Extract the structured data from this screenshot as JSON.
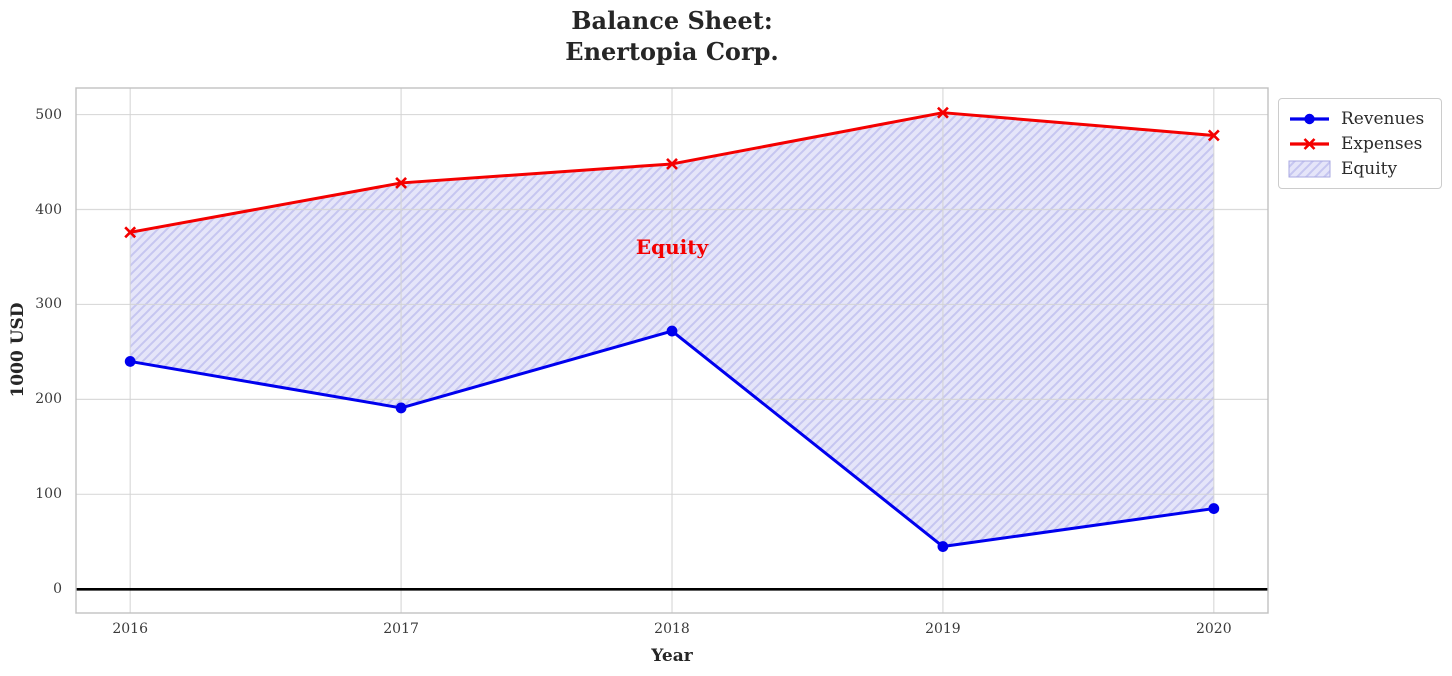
{
  "chart_data": {
    "type": "line",
    "title": "Balance Sheet:\nEnertopia Corp.",
    "title_lines": [
      "Balance Sheet:",
      "Enertopia Corp."
    ],
    "xlabel": "Year",
    "ylabel": "1000 USD",
    "x": [
      2016,
      2017,
      2018,
      2019,
      2020
    ],
    "series": [
      {
        "name": "Revenues",
        "values": [
          240,
          191,
          272,
          45,
          85
        ],
        "color": "#0000ee",
        "marker": "circle"
      },
      {
        "name": "Expenses",
        "values": [
          376,
          428,
          448,
          502,
          478
        ],
        "color": "#f40000",
        "marker": "x"
      }
    ],
    "fill_between": {
      "name": "Equity",
      "upper_series": "Expenses",
      "lower_series": "Revenues",
      "fill_color": "#e5e5f9",
      "hatch_color": "#c6c6f0",
      "hatch": "//"
    },
    "annotation": {
      "text": "Equity",
      "x": 2018,
      "y": 360,
      "color": "#f40000"
    },
    "yticks": [
      0,
      100,
      200,
      300,
      400,
      500
    ],
    "xlim": [
      2015.8,
      2020.2
    ],
    "ylim": [
      -25,
      528
    ],
    "zero_line_y": 0,
    "grid": true,
    "legend": {
      "position": "outside-top-right",
      "entries": [
        "Revenues",
        "Expenses",
        "Equity"
      ]
    },
    "colors": {
      "grid": "#d4d4d4",
      "spine": "#c1c1c1",
      "zero_line": "#000000",
      "title": "#262626",
      "tick_label": "#3a3a3a",
      "legend_border": "#cccccc"
    }
  }
}
